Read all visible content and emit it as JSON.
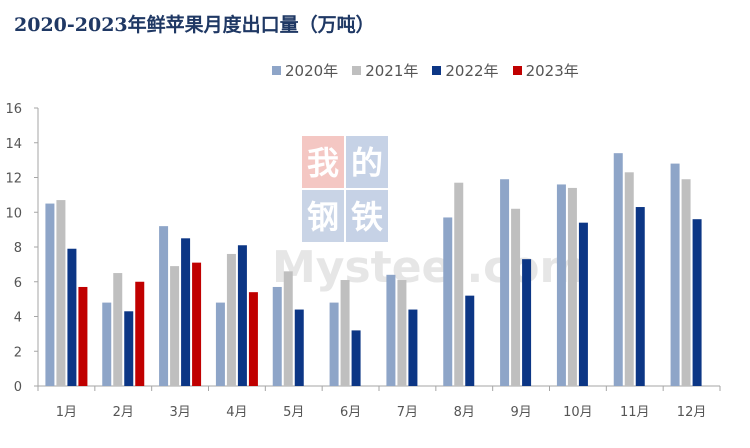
{
  "title": "2020-2023年鲜苹果月度出口量（万吨）",
  "watermark": {
    "chars": [
      "我",
      "的",
      "钢",
      "铁"
    ],
    "text": "Mysteel.com",
    "colors": [
      "#f4c7c3",
      "#c6d2e6",
      "#c9d4e6",
      "#c6d2e6"
    ]
  },
  "chart_data": {
    "type": "bar",
    "title": "2020-2023年鲜苹果月度出口量（万吨）",
    "categories": [
      "1月",
      "2月",
      "3月",
      "4月",
      "5月",
      "6月",
      "7月",
      "8月",
      "9月",
      "10月",
      "11月",
      "12月"
    ],
    "series": [
      {
        "name": "2020年",
        "color": "#8ea5c8",
        "values": [
          10.5,
          4.8,
          9.2,
          4.8,
          5.7,
          4.8,
          6.4,
          9.7,
          11.9,
          11.6,
          13.4,
          12.8
        ]
      },
      {
        "name": "2021年",
        "color": "#bfbfbf",
        "values": [
          10.7,
          6.5,
          6.9,
          7.6,
          6.6,
          6.1,
          6.1,
          11.7,
          10.2,
          11.4,
          12.3,
          11.9
        ]
      },
      {
        "name": "2022年",
        "color": "#0c3685",
        "values": [
          7.9,
          4.3,
          8.5,
          8.1,
          4.4,
          3.2,
          4.4,
          5.2,
          7.3,
          9.4,
          10.3,
          9.6
        ]
      },
      {
        "name": "2023年",
        "color": "#c00000",
        "values": [
          5.7,
          6.0,
          7.1,
          5.4,
          null,
          null,
          null,
          null,
          null,
          null,
          null,
          null
        ]
      }
    ],
    "y_ticks": [
      "0",
      "2",
      "4",
      "6",
      "8",
      "10",
      "12",
      "14",
      "16"
    ],
    "ylim": [
      0,
      16
    ],
    "grid": false,
    "legend_position": "top"
  }
}
